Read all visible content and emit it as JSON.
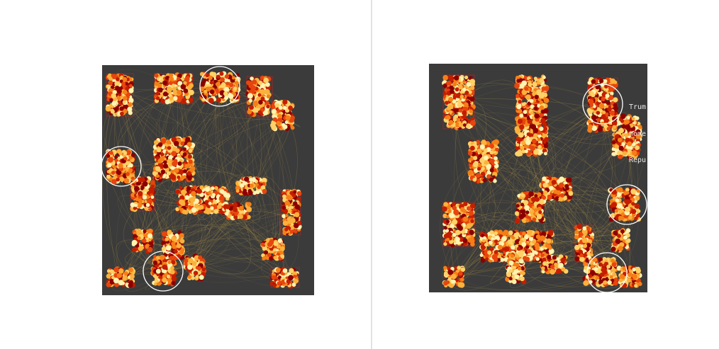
{
  "annotation": {
    "lines": [
      "Trum",
      "mome",
      "Repu"
    ]
  },
  "colors": {
    "panel_background": "#3b3b3b",
    "edge_color": "#d8b24a",
    "point_palette": [
      "#8b0000",
      "#c41e00",
      "#e8450e",
      "#f57f17",
      "#fbb13c",
      "#ffd166",
      "#fff3b0"
    ],
    "cluster_outline": "#d02020",
    "highlight_ring": "#ffffff",
    "divider": "#e2e2e2"
  }
}
